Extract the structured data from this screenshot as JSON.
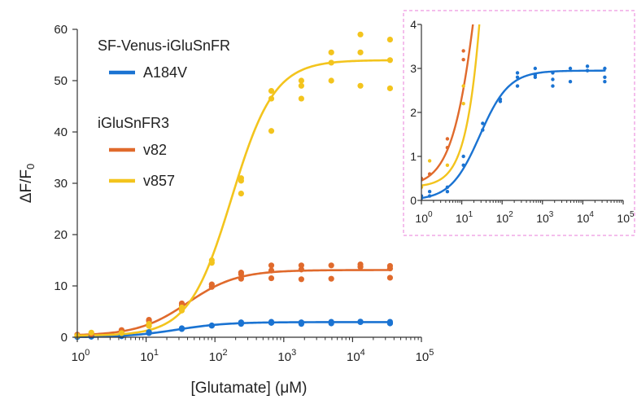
{
  "chart_data": [
    {
      "type": "scatter",
      "panel": "main",
      "xscale": "log",
      "xlim": [
        1,
        100000
      ],
      "ylim": [
        0,
        60
      ],
      "xlabel": "[Glutamate] (μM)",
      "ylabel": "ΔF/F0",
      "ylabel_parts": {
        "prefix": "ΔF/F",
        "subscript": "0"
      },
      "x_ticks": [
        {
          "value": 1,
          "base": "10",
          "exp": "0"
        },
        {
          "value": 10,
          "base": "10",
          "exp": "1"
        },
        {
          "value": 100,
          "base": "10",
          "exp": "2"
        },
        {
          "value": 1000,
          "base": "10",
          "exp": "3"
        },
        {
          "value": 10000,
          "base": "10",
          "exp": "4"
        },
        {
          "value": 100000,
          "base": "10",
          "exp": "5"
        }
      ],
      "y_ticks": [
        "0",
        "10",
        "20",
        "30",
        "40",
        "50",
        "60"
      ],
      "legend": {
        "placement": "top-left",
        "groups": [
          {
            "heading": "SF-Venus-iGluSnFR",
            "entries": [
              {
                "label": "A184V",
                "color": "#1a73d2"
              }
            ]
          },
          {
            "heading": "iGluSnFR3",
            "entries": [
              {
                "label": "v82",
                "color": "#e06a2c"
              },
              {
                "label": "v857",
                "color": "#f3c41d"
              }
            ]
          }
        ]
      },
      "series": [
        {
          "name": "A184V",
          "color": "#1a73d2",
          "fit": {
            "bottom": 0,
            "top": 2.95,
            "ec50": 28,
            "hill": 1.2
          },
          "points": [
            [
              1,
              0.1
            ],
            [
              1,
              0.05
            ],
            [
              1.6,
              0.2
            ],
            [
              1.6,
              0.1
            ],
            [
              4.4,
              0.3
            ],
            [
              4.4,
              0.2
            ],
            [
              11,
              0.8
            ],
            [
              11,
              1.0
            ],
            [
              33,
              1.6
            ],
            [
              33,
              1.75
            ],
            [
              90,
              2.3
            ],
            [
              90,
              2.25
            ],
            [
              240,
              2.6
            ],
            [
              240,
              2.9
            ],
            [
              240,
              2.8
            ],
            [
              660,
              3.0
            ],
            [
              660,
              2.85
            ],
            [
              660,
              2.8
            ],
            [
              1800,
              2.9
            ],
            [
              1800,
              2.6
            ],
            [
              1800,
              2.75
            ],
            [
              4900,
              3.0
            ],
            [
              4900,
              2.7
            ],
            [
              13000,
              3.05
            ],
            [
              13000,
              2.95
            ],
            [
              35000,
              3.0
            ],
            [
              35000,
              2.8
            ],
            [
              35000,
              2.7
            ]
          ]
        },
        {
          "name": "v82",
          "color": "#e06a2c",
          "fit": {
            "bottom": 0.3,
            "top": 13.1,
            "ec50": 40,
            "hill": 1.2
          },
          "points": [
            [
              1,
              0.5
            ],
            [
              1.6,
              0.6
            ],
            [
              4.4,
              1.4
            ],
            [
              4.4,
              1.2
            ],
            [
              11,
              3.4
            ],
            [
              11,
              3.2
            ],
            [
              33,
              6.2
            ],
            [
              33,
              6.6
            ],
            [
              90,
              9.8
            ],
            [
              90,
              10.3
            ],
            [
              240,
              12.3
            ],
            [
              240,
              11.4
            ],
            [
              240,
              12.6
            ],
            [
              660,
              14.0
            ],
            [
              660,
              13.0
            ],
            [
              660,
              11.5
            ],
            [
              1800,
              14.0
            ],
            [
              1800,
              13.2
            ],
            [
              1800,
              11.3
            ],
            [
              4900,
              14.0
            ],
            [
              4900,
              11.4
            ],
            [
              13000,
              14.2
            ],
            [
              13000,
              13.7
            ],
            [
              35000,
              13.9
            ],
            [
              35000,
              13.4
            ],
            [
              35000,
              11.6
            ]
          ]
        },
        {
          "name": "v857",
          "color": "#f3c41d",
          "fit": {
            "bottom": 0.3,
            "top": 54,
            "ec50": 175,
            "hill": 1.4
          },
          "points": [
            [
              1,
              0.3
            ],
            [
              1.6,
              0.9
            ],
            [
              4.4,
              0.8
            ],
            [
              11,
              2.2
            ],
            [
              11,
              2.6
            ],
            [
              33,
              5.8
            ],
            [
              33,
              5.2
            ],
            [
              90,
              14.5
            ],
            [
              90,
              15.0
            ],
            [
              240,
              31.0
            ],
            [
              240,
              28.0
            ],
            [
              240,
              30.5
            ],
            [
              660,
              48.0
            ],
            [
              660,
              46.5
            ],
            [
              660,
              40.2
            ],
            [
              1800,
              50.0
            ],
            [
              1800,
              49.0
            ],
            [
              1800,
              46.5
            ],
            [
              4900,
              55.5
            ],
            [
              4900,
              53.5
            ],
            [
              4900,
              50.0
            ],
            [
              13000,
              59.0
            ],
            [
              13000,
              55.5
            ],
            [
              13000,
              49.0
            ],
            [
              35000,
              58.0
            ],
            [
              35000,
              54.0
            ],
            [
              35000,
              48.5
            ]
          ]
        }
      ]
    },
    {
      "type": "scatter",
      "panel": "inset",
      "xscale": "log",
      "xlim": [
        1,
        100000
      ],
      "ylim": [
        0,
        4
      ],
      "border": "dashed pink",
      "x_ticks": [
        {
          "value": 1,
          "base": "10",
          "exp": "0"
        },
        {
          "value": 10,
          "base": "10",
          "exp": "1"
        },
        {
          "value": 100,
          "base": "10",
          "exp": "2"
        },
        {
          "value": 1000,
          "base": "10",
          "exp": "3"
        },
        {
          "value": 10000,
          "base": "10",
          "exp": "4"
        },
        {
          "value": 100000,
          "base": "10",
          "exp": "5"
        }
      ],
      "y_ticks": [
        "0",
        "1",
        "2",
        "3",
        "4"
      ],
      "series_ref": [
        "A184V",
        "v82",
        "v857"
      ]
    }
  ]
}
